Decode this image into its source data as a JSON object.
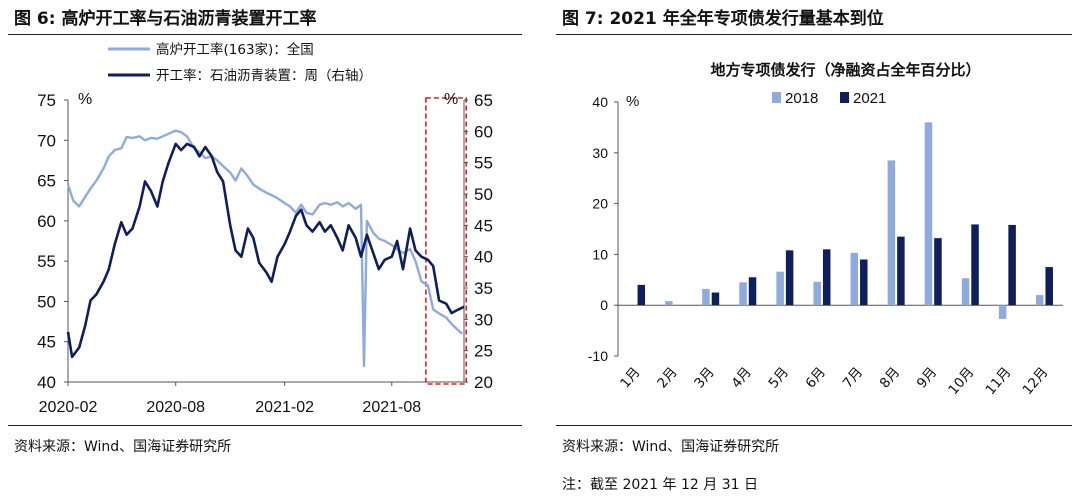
{
  "left": {
    "figure_title": "图 6:  高炉开工率与石油沥青装置开工率",
    "source": "资料来源：Wind、国海证券研究所"
  },
  "right": {
    "figure_title": "图 7:  2021 年全年专项债发行量基本到位",
    "source": "资料来源：Wind、国海证券研究所",
    "note": "注：截至 2021 年 12 月 31 日"
  },
  "colors": {
    "light_blue": "#8FAADC",
    "dark_navy": "#0F1F5C",
    "highlight": "#E02020",
    "axis": "#555555"
  },
  "chart_data": [
    {
      "type": "line",
      "title": "",
      "xlabel": "",
      "y_unit": "%",
      "y2_unit": "%",
      "ylim": [
        40,
        75
      ],
      "yticks": [
        40,
        45,
        50,
        55,
        60,
        65,
        70,
        75
      ],
      "y2lim": [
        20,
        65
      ],
      "y2ticks": [
        20,
        25,
        30,
        35,
        40,
        45,
        50,
        55,
        60,
        65
      ],
      "xlim": [
        "2020-02",
        "2021-12"
      ],
      "xticks": [
        "2020-02",
        "2020-08",
        "2021-02",
        "2021-08"
      ],
      "legend": "top-center",
      "highlight_box": {
        "from": "2021-10",
        "to": "2021-11"
      },
      "series": [
        {
          "name": "高炉开工率(163家)：全国",
          "axis": "left",
          "color": "#8FAADC",
          "points": [
            [
              "2020-02-01",
              64.5
            ],
            [
              "2020-02-10",
              62.5
            ],
            [
              "2020-02-20",
              61.8
            ],
            [
              "2020-03-01",
              63.0
            ],
            [
              "2020-03-10",
              64.0
            ],
            [
              "2020-03-20",
              65.0
            ],
            [
              "2020-04-01",
              66.5
            ],
            [
              "2020-04-10",
              68.0
            ],
            [
              "2020-04-20",
              68.8
            ],
            [
              "2020-05-01",
              69.0
            ],
            [
              "2020-05-10",
              70.4
            ],
            [
              "2020-05-20",
              70.3
            ],
            [
              "2020-06-01",
              70.5
            ],
            [
              "2020-06-10",
              70.0
            ],
            [
              "2020-06-20",
              70.3
            ],
            [
              "2020-07-01",
              70.2
            ],
            [
              "2020-07-10",
              70.5
            ],
            [
              "2020-07-20",
              70.8
            ],
            [
              "2020-08-01",
              71.2
            ],
            [
              "2020-08-10",
              71.0
            ],
            [
              "2020-08-20",
              70.5
            ],
            [
              "2020-09-01",
              69.0
            ],
            [
              "2020-09-10",
              68.5
            ],
            [
              "2020-09-20",
              67.8
            ],
            [
              "2020-10-01",
              68.0
            ],
            [
              "2020-10-10",
              67.5
            ],
            [
              "2020-10-20",
              66.8
            ],
            [
              "2020-11-01",
              66.0
            ],
            [
              "2020-11-10",
              65.0
            ],
            [
              "2020-11-20",
              66.5
            ],
            [
              "2020-12-01",
              65.5
            ],
            [
              "2020-12-10",
              64.5
            ],
            [
              "2020-12-20",
              64.0
            ],
            [
              "2021-01-01",
              63.5
            ],
            [
              "2021-01-10",
              63.2
            ],
            [
              "2021-01-20",
              62.8
            ],
            [
              "2021-02-01",
              62.2
            ],
            [
              "2021-02-10",
              61.8
            ],
            [
              "2021-02-20",
              61.0
            ],
            [
              "2021-03-01",
              62.0
            ],
            [
              "2021-03-10",
              61.0
            ],
            [
              "2021-03-20",
              60.8
            ],
            [
              "2021-04-01",
              62.0
            ],
            [
              "2021-04-10",
              62.2
            ],
            [
              "2021-04-20",
              62.0
            ],
            [
              "2021-05-01",
              62.3
            ],
            [
              "2021-05-10",
              61.8
            ],
            [
              "2021-05-20",
              62.2
            ],
            [
              "2021-06-01",
              61.5
            ],
            [
              "2021-06-10",
              62.0
            ],
            [
              "2021-06-15",
              42.0
            ],
            [
              "2021-06-20",
              60.0
            ],
            [
              "2021-07-01",
              58.5
            ],
            [
              "2021-07-10",
              57.8
            ],
            [
              "2021-07-20",
              57.5
            ],
            [
              "2021-08-01",
              57.0
            ],
            [
              "2021-08-10",
              56.5
            ],
            [
              "2021-08-20",
              56.0
            ],
            [
              "2021-09-01",
              56.5
            ],
            [
              "2021-09-10",
              55.0
            ],
            [
              "2021-09-20",
              52.5
            ],
            [
              "2021-10-01",
              52.0
            ],
            [
              "2021-10-10",
              49.0
            ],
            [
              "2021-10-20",
              48.5
            ],
            [
              "2021-11-01",
              48.0
            ],
            [
              "2021-11-10",
              47.2
            ],
            [
              "2021-11-20",
              46.5
            ],
            [
              "2021-11-28",
              46.0
            ]
          ]
        },
        {
          "name": "开工率：石油沥青装置：周（右轴）",
          "axis": "right",
          "color": "#0F1F5C",
          "points": [
            [
              "2020-02-01",
              28.0
            ],
            [
              "2020-02-08",
              24.0
            ],
            [
              "2020-02-20",
              25.5
            ],
            [
              "2020-03-01",
              29.0
            ],
            [
              "2020-03-10",
              33.0
            ],
            [
              "2020-03-20",
              34.0
            ],
            [
              "2020-04-01",
              36.0
            ],
            [
              "2020-04-10",
              38.0
            ],
            [
              "2020-04-20",
              42.0
            ],
            [
              "2020-05-01",
              45.5
            ],
            [
              "2020-05-10",
              43.5
            ],
            [
              "2020-05-20",
              44.5
            ],
            [
              "2020-06-01",
              48.0
            ],
            [
              "2020-06-10",
              52.0
            ],
            [
              "2020-06-20",
              50.5
            ],
            [
              "2020-07-01",
              48.0
            ],
            [
              "2020-07-10",
              52.0
            ],
            [
              "2020-07-20",
              55.0
            ],
            [
              "2020-08-01",
              58.0
            ],
            [
              "2020-08-10",
              57.0
            ],
            [
              "2020-08-20",
              58.0
            ],
            [
              "2020-09-01",
              57.5
            ],
            [
              "2020-09-10",
              56.0
            ],
            [
              "2020-09-20",
              57.5
            ],
            [
              "2020-10-01",
              56.0
            ],
            [
              "2020-10-10",
              53.5
            ],
            [
              "2020-10-20",
              52.0
            ],
            [
              "2020-11-01",
              45.0
            ],
            [
              "2020-11-10",
              41.0
            ],
            [
              "2020-11-20",
              40.0
            ],
            [
              "2020-12-01",
              44.5
            ],
            [
              "2020-12-10",
              43.0
            ],
            [
              "2020-12-20",
              39.0
            ],
            [
              "2021-01-01",
              37.5
            ],
            [
              "2021-01-10",
              36.0
            ],
            [
              "2021-01-20",
              40.0
            ],
            [
              "2021-02-01",
              42.0
            ],
            [
              "2021-02-10",
              44.0
            ],
            [
              "2021-02-20",
              46.5
            ],
            [
              "2021-03-01",
              47.5
            ],
            [
              "2021-03-10",
              45.0
            ],
            [
              "2021-03-20",
              44.0
            ],
            [
              "2021-04-01",
              45.5
            ],
            [
              "2021-04-10",
              44.0
            ],
            [
              "2021-04-20",
              45.0
            ],
            [
              "2021-05-01",
              43.0
            ],
            [
              "2021-05-10",
              41.0
            ],
            [
              "2021-05-20",
              45.0
            ],
            [
              "2021-06-01",
              43.0
            ],
            [
              "2021-06-10",
              40.0
            ],
            [
              "2021-06-20",
              43.5
            ],
            [
              "2021-07-01",
              40.5
            ],
            [
              "2021-07-10",
              38.0
            ],
            [
              "2021-07-20",
              39.5
            ],
            [
              "2021-08-01",
              40.0
            ],
            [
              "2021-08-10",
              42.5
            ],
            [
              "2021-08-20",
              38.0
            ],
            [
              "2021-09-01",
              44.5
            ],
            [
              "2021-09-10",
              41.0
            ],
            [
              "2021-09-20",
              40.0
            ],
            [
              "2021-10-01",
              39.5
            ],
            [
              "2021-10-10",
              38.5
            ],
            [
              "2021-10-20",
              33.0
            ],
            [
              "2021-11-01",
              32.5
            ],
            [
              "2021-11-10",
              31.0
            ],
            [
              "2021-11-20",
              31.5
            ],
            [
              "2021-12-01",
              32.0
            ]
          ]
        }
      ]
    },
    {
      "type": "bar",
      "title": "地方专项债发行（净融资占全年百分比）",
      "xlabel": "",
      "y_unit": "%",
      "ylim": [
        -10,
        40
      ],
      "yticks": [
        -10,
        0,
        10,
        20,
        30,
        40
      ],
      "legend": "top-left",
      "categories": [
        "1月",
        "2月",
        "3月",
        "4月",
        "5月",
        "6月",
        "7月",
        "8月",
        "9月",
        "10月",
        "11月",
        "12月"
      ],
      "series": [
        {
          "name": "2018",
          "color": "#8FAADC",
          "values": [
            0,
            0.8,
            3.2,
            4.5,
            6.6,
            4.6,
            10.3,
            28.5,
            36.0,
            5.3,
            -2.7,
            2.0
          ]
        },
        {
          "name": "2021",
          "color": "#0F1F5C",
          "values": [
            4.0,
            0,
            2.5,
            5.5,
            10.8,
            11.0,
            9.0,
            13.5,
            13.2,
            15.9,
            15.8,
            7.5
          ]
        }
      ]
    }
  ]
}
